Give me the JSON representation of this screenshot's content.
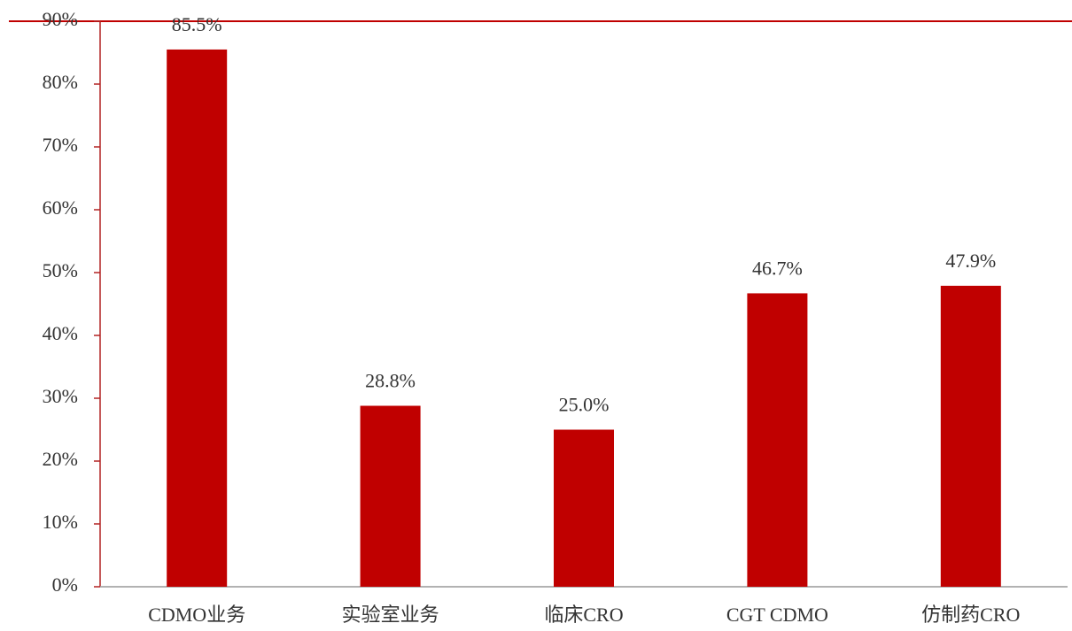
{
  "chart_data": {
    "type": "bar",
    "categories": [
      "CDMO业务",
      "实验室业务",
      "临床CRO",
      "CGT CDMO",
      "仿制药CRO"
    ],
    "values": [
      85.5,
      28.8,
      25.0,
      46.7,
      47.9
    ],
    "value_labels": [
      "85.5%",
      "28.8%",
      "25.0%",
      "46.7%",
      "47.9%"
    ],
    "color": "#c00000",
    "ylim": [
      0,
      90
    ],
    "yticks": [
      {
        "value": 0,
        "label": "0%"
      },
      {
        "value": 10,
        "label": "10%"
      },
      {
        "value": 20,
        "label": "20%"
      },
      {
        "value": 30,
        "label": "30%"
      },
      {
        "value": 40,
        "label": "40%"
      },
      {
        "value": 50,
        "label": "50%"
      },
      {
        "value": 60,
        "label": "60%"
      },
      {
        "value": 70,
        "label": "70%"
      },
      {
        "value": 80,
        "label": "80%"
      },
      {
        "value": 90,
        "label": "90%"
      }
    ],
    "grid": false
  }
}
